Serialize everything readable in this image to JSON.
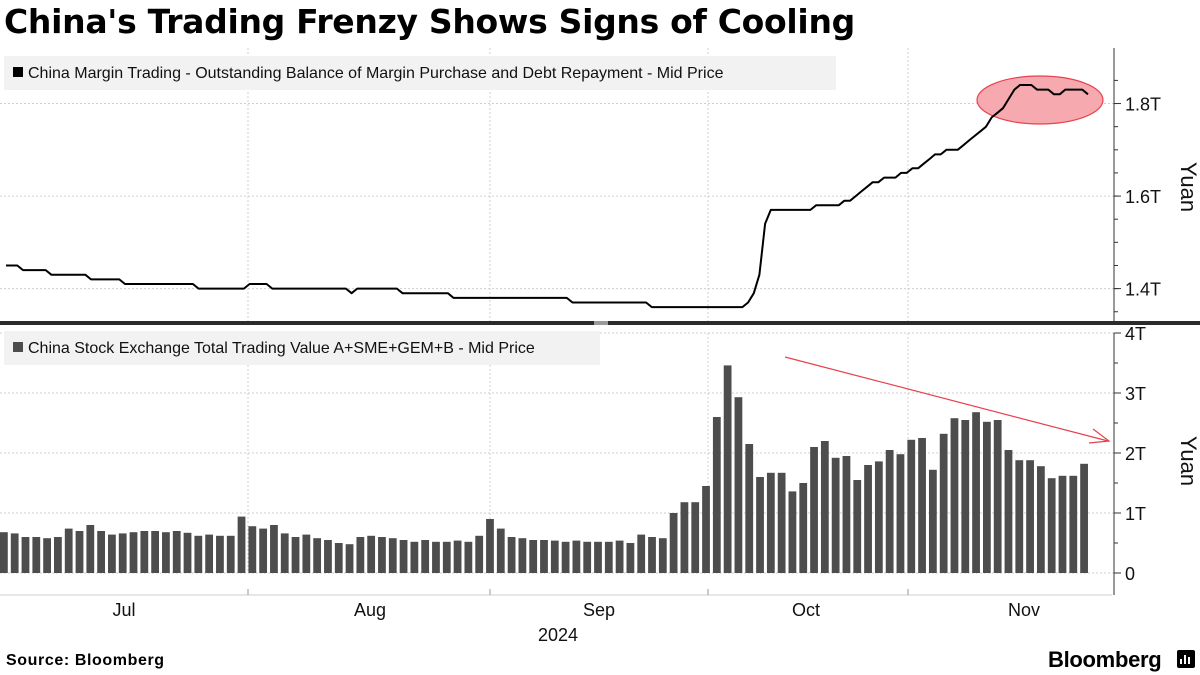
{
  "title": "China's Trading Frenzy Shows Signs of Cooling",
  "source": "Source: Bloomberg",
  "brand": "Bloomberg",
  "colors": {
    "line": "#000000",
    "bars": "#4d4d4d",
    "highlight_fill": "#f6a9ae",
    "highlight_stroke": "#e8414f",
    "arrow": "#e8414f",
    "grid": "#cfcfcf",
    "legend_bg": "#f2f2f2"
  },
  "chart_data": [
    {
      "type": "line",
      "legend": "China Margin Trading - Outstanding Balance of Margin Purchase and Debt Repayment - Mid Price",
      "ylabel": "Yuan",
      "yticks": [
        "1.4T",
        "1.6T",
        "1.8T"
      ],
      "ylim": [
        1.33,
        1.92
      ],
      "unit": "trillion yuan",
      "grid": true,
      "annotation": "highlight ellipse around late-October to November peak",
      "values": [
        1.45,
        1.45,
        1.45,
        1.44,
        1.44,
        1.44,
        1.44,
        1.44,
        1.43,
        1.43,
        1.43,
        1.43,
        1.43,
        1.43,
        1.43,
        1.42,
        1.42,
        1.42,
        1.42,
        1.42,
        1.42,
        1.41,
        1.41,
        1.41,
        1.41,
        1.41,
        1.41,
        1.41,
        1.41,
        1.41,
        1.41,
        1.41,
        1.41,
        1.41,
        1.4,
        1.4,
        1.4,
        1.4,
        1.4,
        1.4,
        1.4,
        1.4,
        1.4,
        1.41,
        1.41,
        1.41,
        1.41,
        1.4,
        1.4,
        1.4,
        1.4,
        1.4,
        1.4,
        1.4,
        1.4,
        1.4,
        1.4,
        1.4,
        1.4,
        1.4,
        1.4,
        1.39,
        1.4,
        1.4,
        1.4,
        1.4,
        1.4,
        1.4,
        1.4,
        1.4,
        1.39,
        1.39,
        1.39,
        1.39,
        1.39,
        1.39,
        1.39,
        1.39,
        1.39,
        1.38,
        1.38,
        1.38,
        1.38,
        1.38,
        1.38,
        1.38,
        1.38,
        1.38,
        1.38,
        1.38,
        1.38,
        1.38,
        1.38,
        1.38,
        1.38,
        1.38,
        1.38,
        1.38,
        1.38,
        1.38,
        1.37,
        1.37,
        1.37,
        1.37,
        1.37,
        1.37,
        1.37,
        1.37,
        1.37,
        1.37,
        1.37,
        1.37,
        1.37,
        1.37,
        1.36,
        1.36,
        1.36,
        1.36,
        1.36,
        1.36,
        1.36,
        1.36,
        1.36,
        1.36,
        1.36,
        1.36,
        1.36,
        1.36,
        1.36,
        1.36,
        1.36,
        1.37,
        1.39,
        1.43,
        1.54,
        1.57,
        1.57,
        1.57,
        1.57,
        1.57,
        1.57,
        1.57,
        1.57,
        1.58,
        1.58,
        1.58,
        1.58,
        1.58,
        1.59,
        1.59,
        1.6,
        1.61,
        1.62,
        1.63,
        1.63,
        1.64,
        1.64,
        1.64,
        1.65,
        1.65,
        1.66,
        1.66,
        1.67,
        1.68,
        1.69,
        1.69,
        1.7,
        1.7,
        1.7,
        1.71,
        1.72,
        1.73,
        1.74,
        1.75,
        1.77,
        1.78,
        1.79,
        1.81,
        1.83,
        1.84,
        1.84,
        1.84,
        1.83,
        1.83,
        1.83,
        1.82,
        1.82,
        1.83,
        1.83,
        1.83,
        1.83,
        1.82
      ]
    },
    {
      "type": "bar",
      "legend": "China Stock Exchange Total Trading Value A+SME+GEM+B - Mid Price",
      "ylabel": "Yuan",
      "yticks": [
        "0",
        "1T",
        "2T",
        "3T",
        "4T"
      ],
      "ylim": [
        0,
        4
      ],
      "unit": "trillion yuan",
      "grid": true,
      "annotation": "downward-sloping trend arrow from late September peak into November",
      "values": [
        0.68,
        0.66,
        0.6,
        0.6,
        0.58,
        0.6,
        0.74,
        0.7,
        0.8,
        0.7,
        0.64,
        0.66,
        0.68,
        0.7,
        0.7,
        0.68,
        0.7,
        0.67,
        0.62,
        0.64,
        0.62,
        0.62,
        0.94,
        0.78,
        0.74,
        0.8,
        0.66,
        0.6,
        0.64,
        0.58,
        0.55,
        0.5,
        0.48,
        0.6,
        0.62,
        0.6,
        0.58,
        0.55,
        0.52,
        0.55,
        0.52,
        0.52,
        0.54,
        0.52,
        0.62,
        0.9,
        0.74,
        0.6,
        0.58,
        0.55,
        0.55,
        0.54,
        0.52,
        0.54,
        0.52,
        0.52,
        0.52,
        0.54,
        0.5,
        0.64,
        0.6,
        0.58,
        1.0,
        1.18,
        1.18,
        1.45,
        2.6,
        3.46,
        2.93,
        2.15,
        1.6,
        1.67,
        1.67,
        1.36,
        1.5,
        2.1,
        2.2,
        1.92,
        1.95,
        1.55,
        1.8,
        1.86,
        2.05,
        1.98,
        2.22,
        2.25,
        1.72,
        2.32,
        2.58,
        2.55,
        2.68,
        2.52,
        2.55,
        2.05,
        1.88,
        1.88,
        1.78,
        1.58,
        1.62,
        1.62,
        1.82
      ]
    }
  ],
  "x_axis": {
    "months": [
      "Jul",
      "Aug",
      "Sep",
      "Oct",
      "Nov"
    ],
    "year": "2024"
  }
}
